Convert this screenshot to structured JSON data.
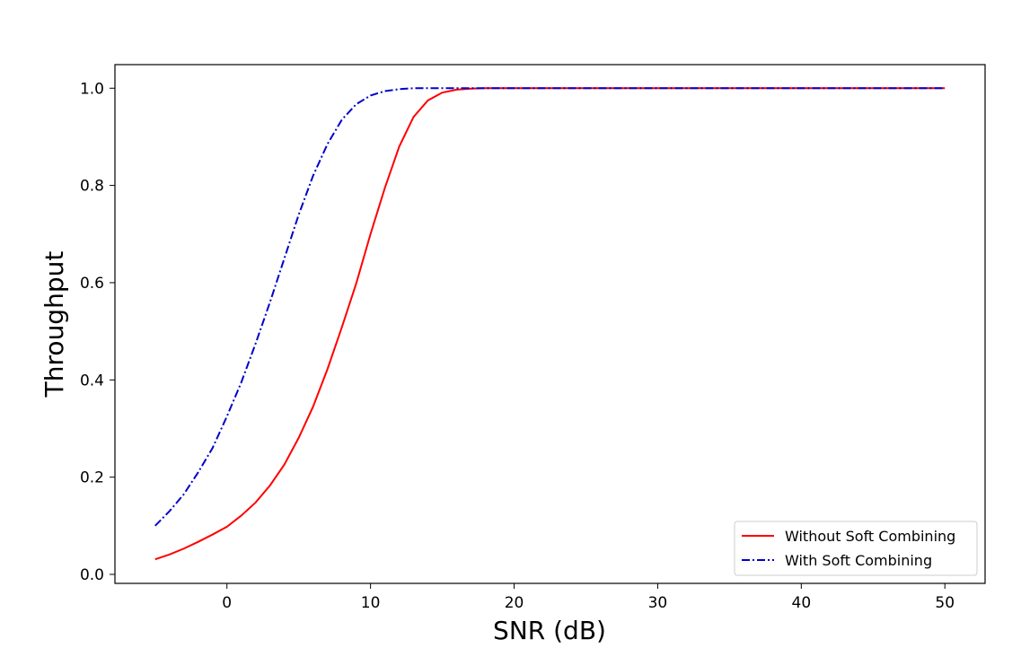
{
  "chart_data": {
    "type": "line",
    "title": "",
    "xlabel": "SNR (dB)",
    "ylabel": "Throughput",
    "xlim": [
      -7.8,
      52.8
    ],
    "ylim": [
      -0.0185,
      1.0485
    ],
    "xticks": [
      0,
      10,
      20,
      30,
      40,
      50
    ],
    "yticks": [
      0.0,
      0.2,
      0.4,
      0.6,
      0.8,
      1.0
    ],
    "xtick_labels": [
      "0",
      "10",
      "20",
      "30",
      "40",
      "50"
    ],
    "ytick_labels": [
      "0.0",
      "0.2",
      "0.4",
      "0.6",
      "0.8",
      "1.0"
    ],
    "grid": false,
    "legend_position": "lower-right",
    "x": [
      -5,
      -4,
      -3,
      -2,
      -1,
      0,
      1,
      2,
      3,
      4,
      5,
      6,
      7,
      8,
      9,
      10,
      11,
      12,
      13,
      14,
      15,
      16,
      17,
      18,
      19,
      20,
      22,
      24,
      26,
      28,
      30,
      32,
      34,
      36,
      38,
      40,
      42,
      44,
      46,
      48,
      50
    ],
    "series": [
      {
        "name": "Without Soft Combining",
        "color": "#ff0000",
        "style": "solid",
        "values": [
          0.031,
          0.041,
          0.053,
          0.067,
          0.082,
          0.098,
          0.121,
          0.148,
          0.183,
          0.226,
          0.281,
          0.345,
          0.422,
          0.508,
          0.598,
          0.7,
          0.795,
          0.88,
          0.941,
          0.975,
          0.991,
          0.997,
          0.999,
          1.0,
          1.0,
          1.0,
          1.0,
          1.0,
          1.0,
          1.0,
          1.0,
          1.0,
          1.0,
          1.0,
          1.0,
          1.0,
          1.0,
          1.0,
          1.0,
          1.0,
          1.0
        ]
      },
      {
        "name": "With Soft Combining",
        "color": "#0000cc",
        "style": "dashdot",
        "values": [
          0.1,
          0.13,
          0.165,
          0.21,
          0.26,
          0.325,
          0.395,
          0.475,
          0.56,
          0.65,
          0.74,
          0.82,
          0.885,
          0.935,
          0.967,
          0.985,
          0.994,
          0.998,
          1.0,
          1.0,
          1.0,
          1.0,
          1.0,
          1.0,
          1.0,
          1.0,
          1.0,
          1.0,
          1.0,
          1.0,
          1.0,
          1.0,
          1.0,
          1.0,
          1.0,
          1.0,
          1.0,
          1.0,
          1.0,
          1.0,
          1.0
        ]
      }
    ]
  }
}
